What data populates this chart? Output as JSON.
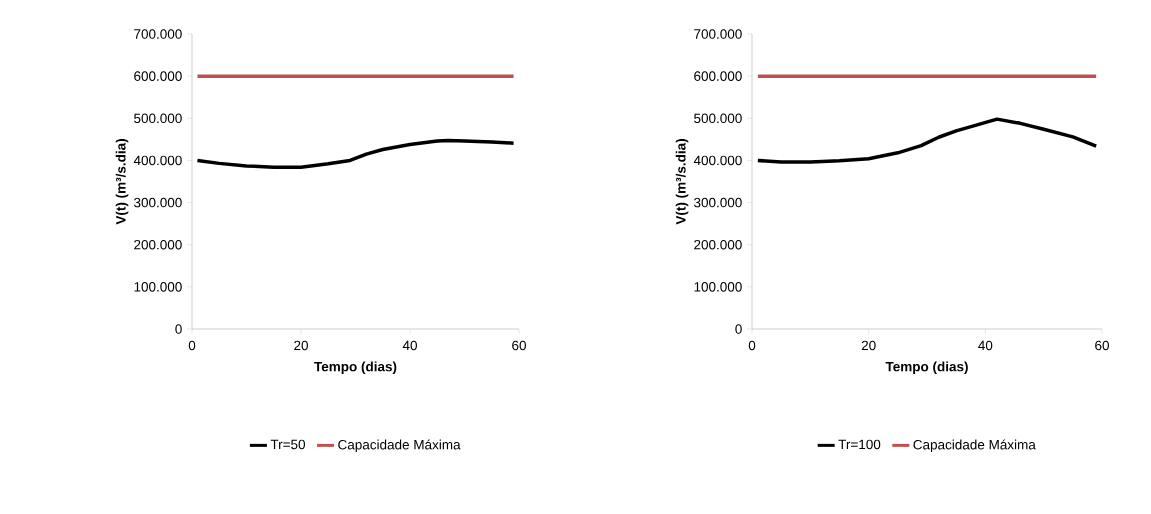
{
  "chart_data": [
    {
      "type": "line",
      "xlabel": "Tempo (dias)",
      "ylabel": "V(t) (m³/s.dia)",
      "xlim": [
        0,
        60
      ],
      "xticks": [
        0,
        20,
        40,
        60
      ],
      "ylim": [
        0,
        700000
      ],
      "yticks": [
        0,
        {
          "value": 100000,
          "label": "100.000"
        },
        {
          "value": 200000,
          "label": "200.000"
        },
        {
          "value": 300000,
          "label": "300.000"
        },
        {
          "value": 400000,
          "label": "400.000"
        },
        {
          "value": 500000,
          "label": "500.000"
        },
        {
          "value": 600000,
          "label": "600.000"
        },
        {
          "value": 700000,
          "label": "700.000"
        }
      ],
      "legend": "bottom",
      "series": [
        {
          "name": "Tr=50",
          "color": "#000000",
          "x": [
            1,
            5,
            10,
            15,
            20,
            25,
            29,
            32,
            35,
            40,
            45,
            47,
            50,
            55,
            59
          ],
          "values": [
            400000,
            393000,
            387000,
            384000,
            384000,
            392000,
            400000,
            415000,
            426000,
            438000,
            446000,
            447000,
            446000,
            444000,
            441000
          ]
        },
        {
          "name": "Capacidade Máxima",
          "color": "#c0504d",
          "x": [
            1,
            59
          ],
          "values": [
            600000,
            600000
          ]
        }
      ]
    },
    {
      "type": "line",
      "xlabel": "Tempo (dias)",
      "ylabel": "V(t) (m³/s.dia)",
      "xlim": [
        0,
        60
      ],
      "xticks": [
        0,
        20,
        40,
        60
      ],
      "ylim": [
        0,
        700000
      ],
      "yticks": [
        0,
        {
          "value": 100000,
          "label": "100.000"
        },
        {
          "value": 200000,
          "label": "200.000"
        },
        {
          "value": 300000,
          "label": "300.000"
        },
        {
          "value": 400000,
          "label": "400.000"
        },
        {
          "value": 500000,
          "label": "500.000"
        },
        {
          "value": 600000,
          "label": "600.000"
        },
        {
          "value": 700000,
          "label": "700.000"
        }
      ],
      "legend": "bottom",
      "series": [
        {
          "name": "Tr=100",
          "color": "#000000",
          "x": [
            1,
            5,
            10,
            15,
            20,
            25,
            29,
            32,
            35,
            38,
            42,
            46,
            50,
            55,
            59
          ],
          "values": [
            400000,
            396000,
            396000,
            399000,
            404000,
            418000,
            435000,
            455000,
            470000,
            482000,
            498000,
            488000,
            474000,
            456000,
            434000
          ]
        },
        {
          "name": "Capacidade Máxima",
          "color": "#c0504d",
          "x": [
            1,
            59
          ],
          "values": [
            600000,
            600000
          ]
        }
      ]
    }
  ]
}
